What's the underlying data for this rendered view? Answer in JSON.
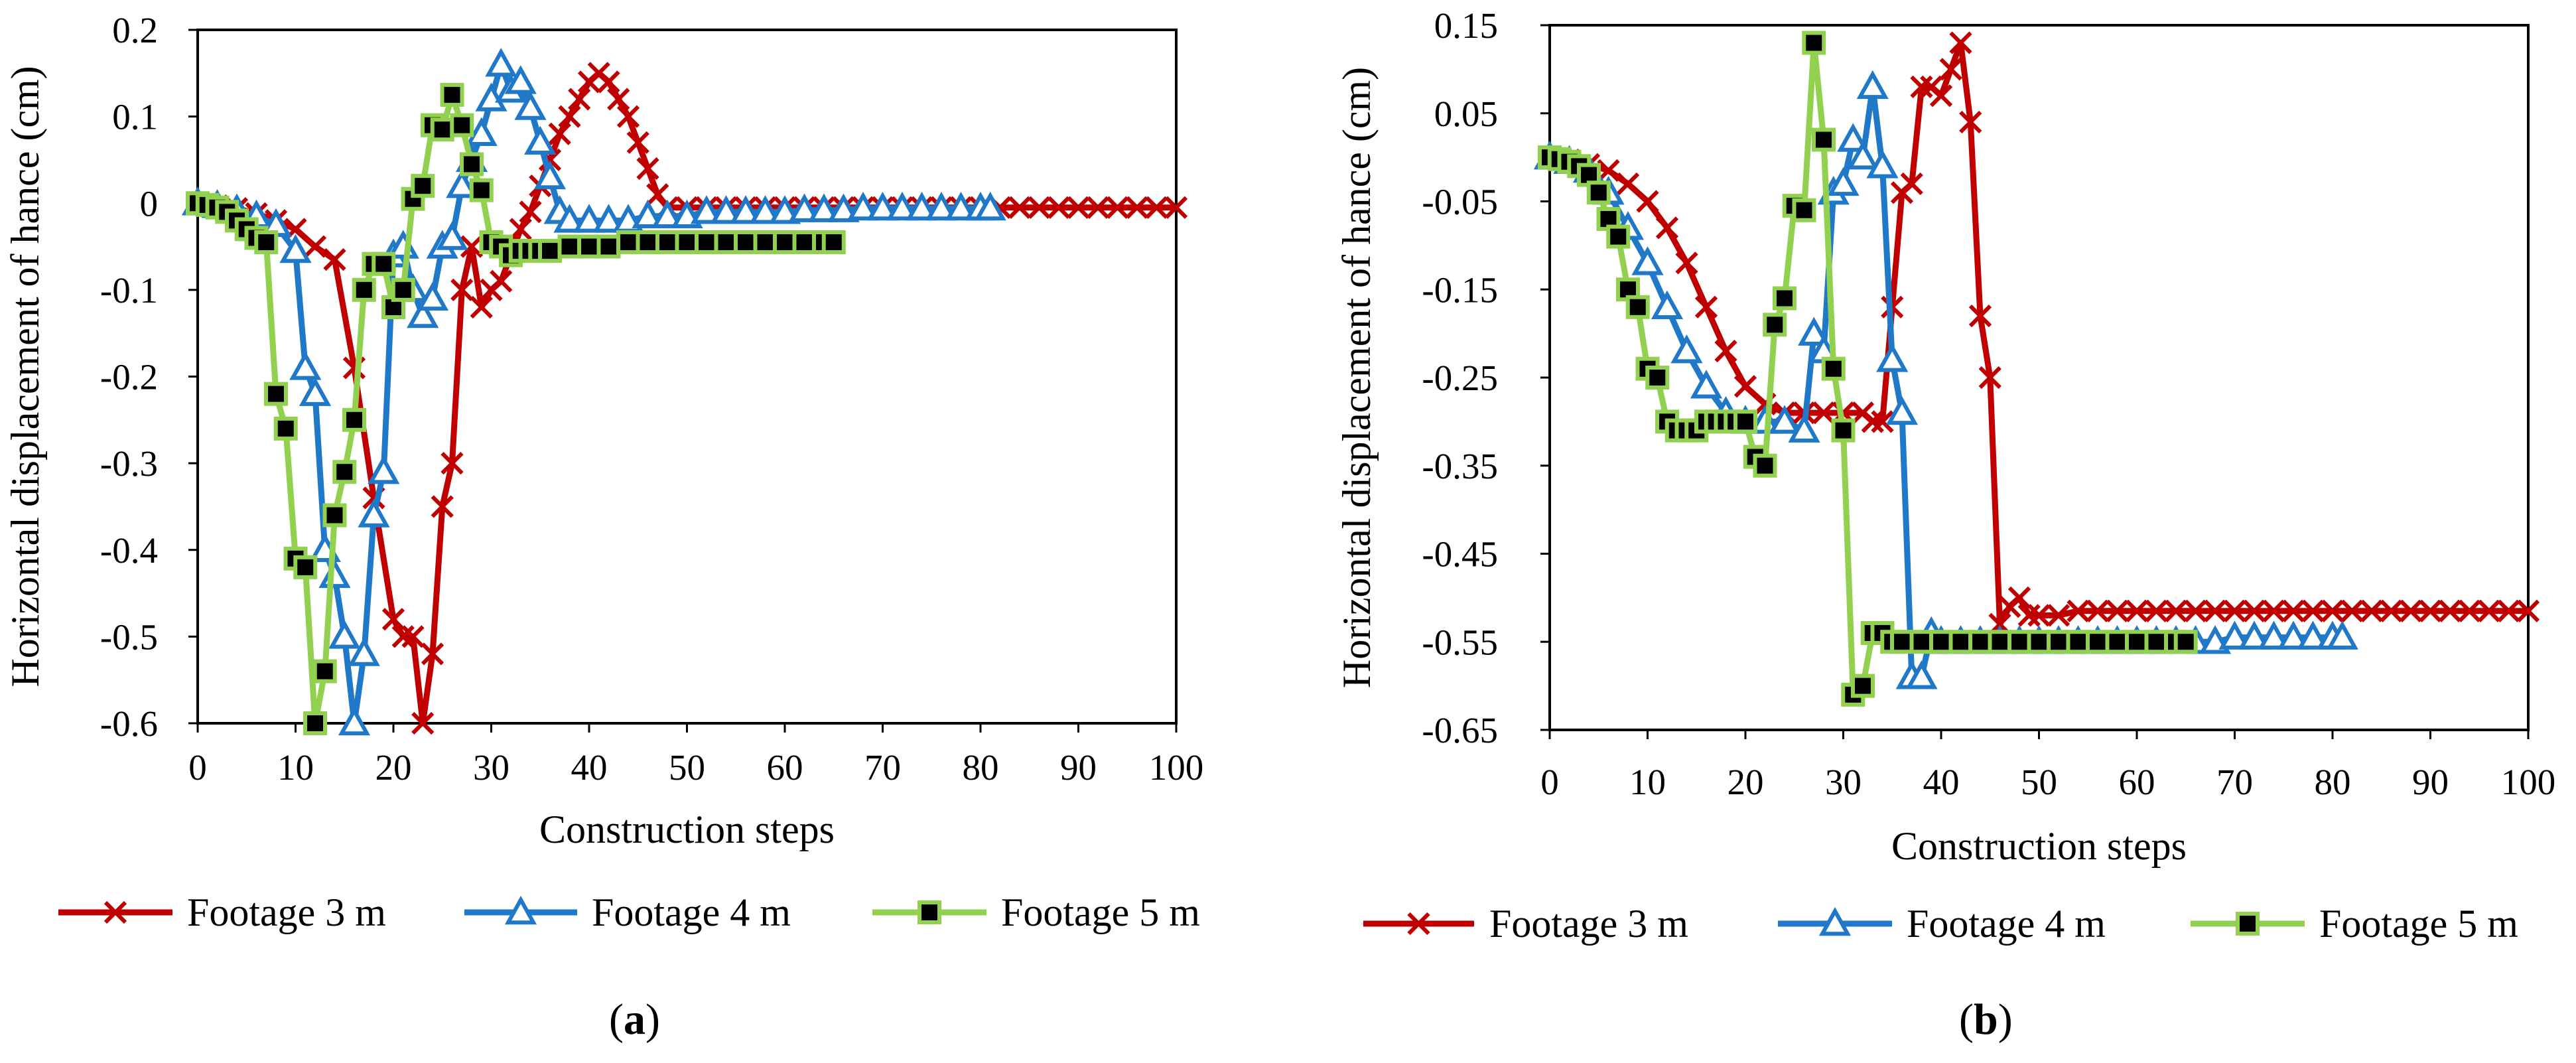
{
  "chart_data": [
    {
      "panel": "a",
      "type": "line",
      "xlabel": "Construction steps",
      "ylabel": "Horizontal displacement of hance (cm)",
      "xlim": [
        0,
        100
      ],
      "ylim": [
        -0.6,
        0.2
      ],
      "xticks": [
        "0",
        "10",
        "20",
        "30",
        "40",
        "50",
        "60",
        "70",
        "80",
        "90",
        "100"
      ],
      "yticks": [
        "0.2",
        "0.1",
        "0",
        "-0.1",
        "-0.2",
        "-0.3",
        "-0.4",
        "-0.5",
        "-0.6"
      ],
      "series": [
        {
          "name": "Footage 3 m",
          "color": "#C00000",
          "marker": "x",
          "x": [
            0,
            2,
            4,
            6,
            8,
            10,
            12,
            14,
            16,
            18,
            20,
            21,
            22,
            23,
            24,
            25,
            26,
            27,
            28,
            29,
            30,
            31,
            32,
            33,
            34,
            35,
            36,
            37,
            38,
            39,
            40,
            41,
            42,
            43,
            44,
            45,
            46,
            47,
            48,
            50,
            52,
            54,
            56,
            58,
            60,
            62,
            64,
            66,
            68,
            70,
            72,
            74,
            76,
            78,
            80,
            82,
            84,
            86,
            88,
            90,
            92,
            94,
            96,
            98,
            100
          ],
          "y": [
            0,
            -0.003,
            -0.006,
            -0.012,
            -0.02,
            -0.03,
            -0.05,
            -0.065,
            -0.19,
            -0.34,
            -0.48,
            -0.5,
            -0.5,
            -0.6,
            -0.52,
            -0.35,
            -0.3,
            -0.1,
            -0.05,
            -0.12,
            -0.1,
            -0.09,
            -0.06,
            -0.03,
            -0.01,
            0.02,
            0.05,
            0.08,
            0.1,
            0.12,
            0.14,
            0.15,
            0.14,
            0.12,
            0.1,
            0.07,
            0.04,
            0.01,
            -0.005,
            -0.005,
            -0.005,
            -0.005,
            -0.005,
            -0.005,
            -0.005,
            -0.005,
            -0.005,
            -0.005,
            -0.005,
            -0.005,
            -0.005,
            -0.005,
            -0.005,
            -0.005,
            -0.005,
            -0.005,
            -0.005,
            -0.005,
            -0.005,
            -0.005,
            -0.005,
            -0.005,
            -0.005,
            -0.005,
            -0.005
          ]
        },
        {
          "name": "Footage 4 m",
          "color": "#1F78C8",
          "marker": "triangle",
          "x": [
            0,
            2,
            4,
            6,
            8,
            10,
            11,
            12,
            13,
            14,
            15,
            16,
            17,
            18,
            19,
            20,
            21,
            22,
            23,
            24,
            25,
            26,
            27,
            28,
            29,
            30,
            31,
            32,
            33,
            34,
            35,
            36,
            37,
            38,
            40,
            42,
            44,
            46,
            48,
            50,
            52,
            54,
            56,
            58,
            60,
            62,
            64,
            66,
            68,
            70,
            72,
            74,
            76,
            78,
            80,
            81
          ],
          "y": [
            0,
            -0.003,
            -0.008,
            -0.015,
            -0.025,
            -0.055,
            -0.19,
            -0.22,
            -0.4,
            -0.43,
            -0.5,
            -0.6,
            -0.52,
            -0.36,
            -0.31,
            -0.06,
            -0.05,
            -0.1,
            -0.13,
            -0.11,
            -0.05,
            -0.04,
            0.02,
            0.05,
            0.08,
            0.12,
            0.16,
            0.13,
            0.14,
            0.11,
            0.07,
            0.03,
            -0.01,
            -0.02,
            -0.02,
            -0.02,
            -0.02,
            -0.015,
            -0.015,
            -0.015,
            -0.01,
            -0.01,
            -0.01,
            -0.01,
            -0.01,
            -0.008,
            -0.008,
            -0.008,
            -0.006,
            -0.006,
            -0.006,
            -0.006,
            -0.006,
            -0.006,
            -0.006,
            -0.006
          ]
        },
        {
          "name": "Footage 5 m",
          "color": "#92D050",
          "marker": "square",
          "x": [
            0,
            1,
            2,
            3,
            4,
            5,
            6,
            7,
            8,
            9,
            10,
            11,
            12,
            13,
            14,
            15,
            16,
            17,
            18,
            19,
            20,
            21,
            22,
            23,
            24,
            25,
            26,
            27,
            28,
            29,
            30,
            31,
            32,
            33,
            34,
            35,
            36,
            38,
            40,
            42,
            44,
            46,
            48,
            50,
            52,
            54,
            56,
            58,
            60,
            62,
            64,
            65
          ],
          "y": [
            0,
            -0.002,
            -0.005,
            -0.01,
            -0.02,
            -0.03,
            -0.04,
            -0.045,
            -0.22,
            -0.26,
            -0.41,
            -0.42,
            -0.6,
            -0.54,
            -0.36,
            -0.31,
            -0.25,
            -0.1,
            -0.07,
            -0.07,
            -0.12,
            -0.1,
            0.005,
            0.02,
            0.09,
            0.085,
            0.125,
            0.09,
            0.045,
            0.015,
            -0.045,
            -0.05,
            -0.06,
            -0.055,
            -0.055,
            -0.055,
            -0.055,
            -0.05,
            -0.05,
            -0.05,
            -0.045,
            -0.045,
            -0.045,
            -0.045,
            -0.045,
            -0.045,
            -0.045,
            -0.045,
            -0.045,
            -0.045,
            -0.045,
            -0.045
          ]
        }
      ],
      "legend": [
        "Footage 3 m",
        "Footage 4 m",
        "Footage 5 m"
      ],
      "panel_label_open": "(",
      "panel_label_letter": "a",
      "panel_label_close": ")"
    },
    {
      "panel": "b",
      "type": "line",
      "xlabel": "Construction steps",
      "ylabel": "Horizontal displacement of hance (cm)",
      "xlim": [
        0,
        100
      ],
      "ylim": [
        -0.65,
        0.15
      ],
      "xticks": [
        "0",
        "10",
        "20",
        "30",
        "40",
        "50",
        "60",
        "70",
        "80",
        "90",
        "100"
      ],
      "yticks": [
        "0.15",
        "0.05",
        "-0.05",
        "-0.15",
        "-0.25",
        "-0.35",
        "-0.45",
        "-0.55",
        "-0.65"
      ],
      "series": [
        {
          "name": "Footage 3 m",
          "color": "#C00000",
          "marker": "x",
          "x": [
            0,
            2,
            4,
            6,
            8,
            10,
            12,
            14,
            16,
            18,
            20,
            22,
            24,
            26,
            28,
            30,
            32,
            33,
            34,
            35,
            36,
            37,
            38,
            39,
            40,
            41,
            42,
            43,
            44,
            45,
            46,
            47,
            48,
            49,
            50,
            52,
            54,
            56,
            58,
            60,
            62,
            64,
            66,
            68,
            70,
            72,
            74,
            76,
            78,
            80,
            82,
            84,
            86,
            88,
            90,
            92,
            94,
            96,
            98,
            100
          ],
          "y": [
            0,
            -0.003,
            -0.008,
            -0.015,
            -0.03,
            -0.05,
            -0.08,
            -0.12,
            -0.17,
            -0.22,
            -0.26,
            -0.28,
            -0.29,
            -0.29,
            -0.29,
            -0.29,
            -0.29,
            -0.3,
            -0.3,
            -0.17,
            -0.04,
            -0.03,
            0.08,
            0.08,
            0.07,
            0.1,
            0.13,
            0.04,
            -0.18,
            -0.25,
            -0.53,
            -0.51,
            -0.5,
            -0.52,
            -0.52,
            -0.52,
            -0.515,
            -0.515,
            -0.515,
            -0.515,
            -0.515,
            -0.515,
            -0.515,
            -0.515,
            -0.515,
            -0.515,
            -0.515,
            -0.515,
            -0.515,
            -0.515,
            -0.515,
            -0.515,
            -0.515,
            -0.515,
            -0.515,
            -0.515,
            -0.515,
            -0.515,
            -0.515,
            -0.515
          ]
        },
        {
          "name": "Footage 4 m",
          "color": "#1F78C8",
          "marker": "triangle",
          "x": [
            0,
            2,
            4,
            6,
            8,
            10,
            12,
            14,
            16,
            18,
            20,
            22,
            24,
            26,
            27,
            28,
            29,
            30,
            31,
            32,
            33,
            34,
            35,
            36,
            37,
            38,
            39,
            40,
            42,
            44,
            46,
            48,
            50,
            52,
            54,
            56,
            58,
            60,
            62,
            64,
            66,
            68,
            70,
            72,
            74,
            76,
            78,
            80,
            81
          ],
          "y": [
            0,
            -0.005,
            -0.015,
            -0.04,
            -0.08,
            -0.12,
            -0.17,
            -0.22,
            -0.26,
            -0.29,
            -0.3,
            -0.3,
            -0.3,
            -0.31,
            -0.2,
            -0.22,
            -0.04,
            -0.03,
            0.02,
            0.0,
            0.08,
            -0.01,
            -0.23,
            -0.29,
            -0.59,
            -0.59,
            -0.54,
            -0.55,
            -0.55,
            -0.55,
            -0.55,
            -0.55,
            -0.55,
            -0.55,
            -0.55,
            -0.55,
            -0.55,
            -0.55,
            -0.55,
            -0.55,
            -0.55,
            -0.55,
            -0.545,
            -0.545,
            -0.545,
            -0.545,
            -0.545,
            -0.545,
            -0.545
          ]
        },
        {
          "name": "Footage 5 m",
          "color": "#92D050",
          "marker": "square",
          "x": [
            0,
            1,
            2,
            3,
            4,
            5,
            6,
            7,
            8,
            9,
            10,
            11,
            12,
            13,
            14,
            15,
            16,
            17,
            18,
            19,
            20,
            21,
            22,
            23,
            24,
            25,
            26,
            27,
            28,
            29,
            30,
            31,
            32,
            33,
            34,
            35,
            36,
            38,
            40,
            42,
            44,
            46,
            48,
            50,
            52,
            54,
            56,
            58,
            60,
            62,
            64,
            65
          ],
          "y": [
            0,
            -0.002,
            -0.005,
            -0.01,
            -0.02,
            -0.04,
            -0.07,
            -0.09,
            -0.15,
            -0.17,
            -0.24,
            -0.25,
            -0.3,
            -0.31,
            -0.31,
            -0.31,
            -0.3,
            -0.3,
            -0.3,
            -0.3,
            -0.3,
            -0.34,
            -0.35,
            -0.19,
            -0.16,
            -0.055,
            -0.06,
            0.13,
            0.02,
            -0.24,
            -0.31,
            -0.61,
            -0.6,
            -0.54,
            -0.54,
            -0.55,
            -0.55,
            -0.55,
            -0.55,
            -0.55,
            -0.55,
            -0.55,
            -0.55,
            -0.55,
            -0.55,
            -0.55,
            -0.55,
            -0.55,
            -0.55,
            -0.55,
            -0.55,
            -0.55
          ]
        }
      ],
      "legend": [
        "Footage 3 m",
        "Footage 4 m",
        "Footage 5 m"
      ],
      "panel_label_open": "(",
      "panel_label_letter": "b",
      "panel_label_close": ")"
    }
  ]
}
